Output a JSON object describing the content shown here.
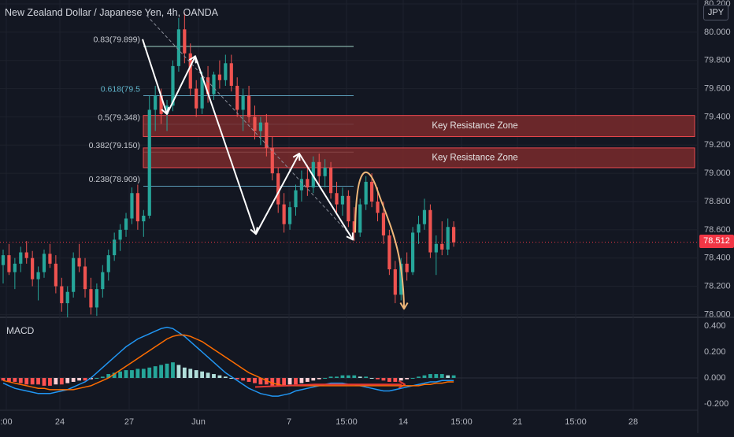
{
  "header": {
    "title": "New Zealand Dollar / Japanese Yen, 4h, OANDA",
    "currency": "JPY",
    "last_price": "78.512"
  },
  "panes": {
    "macd_label": "MACD"
  },
  "colors": {
    "background": "#131722",
    "up": "#26a69a",
    "down": "#ef5350",
    "fib": "#5b9cb8",
    "zone_fill": "#7a2a2c",
    "zone_border": "#e9484e",
    "arrow_white": "#ffffff",
    "arrow_orange": "#f0b87a",
    "macd_line": "#2196f3",
    "signal_line": "#ff6d00",
    "price_line": "#f23645"
  },
  "chart_data": [
    {
      "type": "candlestick",
      "title": "New Zealand Dollar / Japanese Yen, 4h, OANDA",
      "x_ticks": [
        ":00",
        "24",
        "27",
        "Jun",
        "7",
        "15:00",
        "14",
        "15:00",
        "21",
        "15:00",
        "28"
      ],
      "y_ticks": [
        "80.200",
        "80.000",
        "79.800",
        "79.600",
        "79.400",
        "79.200",
        "79.000",
        "78.800",
        "78.600",
        "78.400",
        "78.200",
        "78.000"
      ],
      "ylim": [
        77.98,
        80.2
      ],
      "last_price": 78.512,
      "candles": [
        {
          "o": 78.35,
          "h": 78.46,
          "l": 78.22,
          "c": 78.42
        },
        {
          "o": 78.42,
          "h": 78.5,
          "l": 78.28,
          "c": 78.3
        },
        {
          "o": 78.3,
          "h": 78.4,
          "l": 78.18,
          "c": 78.36
        },
        {
          "o": 78.36,
          "h": 78.48,
          "l": 78.3,
          "c": 78.44
        },
        {
          "o": 78.44,
          "h": 78.52,
          "l": 78.36,
          "c": 78.4
        },
        {
          "o": 78.4,
          "h": 78.45,
          "l": 78.2,
          "c": 78.25
        },
        {
          "o": 78.25,
          "h": 78.34,
          "l": 78.1,
          "c": 78.3
        },
        {
          "o": 78.3,
          "h": 78.46,
          "l": 78.26,
          "c": 78.43
        },
        {
          "o": 78.43,
          "h": 78.5,
          "l": 78.33,
          "c": 78.36
        },
        {
          "o": 78.36,
          "h": 78.42,
          "l": 78.15,
          "c": 78.2
        },
        {
          "o": 78.2,
          "h": 78.26,
          "l": 78.02,
          "c": 78.08
        },
        {
          "o": 78.08,
          "h": 78.2,
          "l": 77.98,
          "c": 78.16
        },
        {
          "o": 78.16,
          "h": 78.44,
          "l": 78.12,
          "c": 78.4
        },
        {
          "o": 78.4,
          "h": 78.5,
          "l": 78.3,
          "c": 78.34
        },
        {
          "o": 78.34,
          "h": 78.4,
          "l": 78.12,
          "c": 78.18
        },
        {
          "o": 78.18,
          "h": 78.26,
          "l": 78.0,
          "c": 78.05
        },
        {
          "o": 78.05,
          "h": 78.22,
          "l": 77.99,
          "c": 78.18
        },
        {
          "o": 78.18,
          "h": 78.35,
          "l": 78.12,
          "c": 78.3
        },
        {
          "o": 78.3,
          "h": 78.46,
          "l": 78.24,
          "c": 78.42
        },
        {
          "o": 78.42,
          "h": 78.58,
          "l": 78.38,
          "c": 78.53
        },
        {
          "o": 78.53,
          "h": 78.64,
          "l": 78.45,
          "c": 78.6
        },
        {
          "o": 78.6,
          "h": 78.72,
          "l": 78.55,
          "c": 78.68
        },
        {
          "o": 78.68,
          "h": 78.9,
          "l": 78.64,
          "c": 78.86
        },
        {
          "o": 78.86,
          "h": 78.92,
          "l": 78.6,
          "c": 78.66
        },
        {
          "o": 78.66,
          "h": 78.74,
          "l": 78.55,
          "c": 78.7
        },
        {
          "o": 78.7,
          "h": 79.55,
          "l": 78.68,
          "c": 79.45
        },
        {
          "o": 79.45,
          "h": 79.62,
          "l": 79.3,
          "c": 79.55
        },
        {
          "o": 79.55,
          "h": 79.6,
          "l": 79.35,
          "c": 79.42
        },
        {
          "o": 79.42,
          "h": 79.52,
          "l": 79.3,
          "c": 79.48
        },
        {
          "o": 79.48,
          "h": 79.8,
          "l": 79.44,
          "c": 79.76
        },
        {
          "o": 79.76,
          "h": 80.1,
          "l": 79.72,
          "c": 80.02
        },
        {
          "o": 80.02,
          "h": 80.14,
          "l": 79.78,
          "c": 79.85
        },
        {
          "o": 79.85,
          "h": 79.92,
          "l": 79.55,
          "c": 79.6
        },
        {
          "o": 79.6,
          "h": 79.66,
          "l": 79.4,
          "c": 79.46
        },
        {
          "o": 79.46,
          "h": 79.72,
          "l": 79.42,
          "c": 79.68
        },
        {
          "o": 79.68,
          "h": 79.76,
          "l": 79.5,
          "c": 79.56
        },
        {
          "o": 79.56,
          "h": 79.72,
          "l": 79.52,
          "c": 79.7
        },
        {
          "o": 79.7,
          "h": 79.8,
          "l": 79.6,
          "c": 79.66
        },
        {
          "o": 79.66,
          "h": 79.84,
          "l": 79.62,
          "c": 79.78
        },
        {
          "o": 79.78,
          "h": 79.84,
          "l": 79.58,
          "c": 79.62
        },
        {
          "o": 79.62,
          "h": 79.68,
          "l": 79.4,
          "c": 79.45
        },
        {
          "o": 79.45,
          "h": 79.6,
          "l": 79.3,
          "c": 79.55
        },
        {
          "o": 79.55,
          "h": 79.62,
          "l": 79.36,
          "c": 79.4
        },
        {
          "o": 79.4,
          "h": 79.48,
          "l": 79.24,
          "c": 79.3
        },
        {
          "o": 79.3,
          "h": 79.4,
          "l": 79.2,
          "c": 79.36
        },
        {
          "o": 79.36,
          "h": 79.42,
          "l": 79.12,
          "c": 79.18
        },
        {
          "o": 79.18,
          "h": 79.26,
          "l": 78.95,
          "c": 79.0
        },
        {
          "o": 79.0,
          "h": 79.04,
          "l": 78.72,
          "c": 78.78
        },
        {
          "o": 78.78,
          "h": 78.86,
          "l": 78.58,
          "c": 78.64
        },
        {
          "o": 78.64,
          "h": 78.8,
          "l": 78.6,
          "c": 78.76
        },
        {
          "o": 78.76,
          "h": 78.92,
          "l": 78.7,
          "c": 78.88
        },
        {
          "o": 78.88,
          "h": 79.02,
          "l": 78.8,
          "c": 78.96
        },
        {
          "o": 78.96,
          "h": 79.06,
          "l": 78.84,
          "c": 78.9
        },
        {
          "o": 78.9,
          "h": 79.12,
          "l": 78.86,
          "c": 79.08
        },
        {
          "o": 79.08,
          "h": 79.14,
          "l": 78.92,
          "c": 78.98
        },
        {
          "o": 78.98,
          "h": 79.1,
          "l": 78.9,
          "c": 79.04
        },
        {
          "o": 79.04,
          "h": 79.08,
          "l": 78.82,
          "c": 78.86
        },
        {
          "o": 78.86,
          "h": 78.94,
          "l": 78.72,
          "c": 78.78
        },
        {
          "o": 78.78,
          "h": 78.9,
          "l": 78.7,
          "c": 78.84
        },
        {
          "o": 78.84,
          "h": 78.88,
          "l": 78.62,
          "c": 78.66
        },
        {
          "o": 78.66,
          "h": 78.76,
          "l": 78.52,
          "c": 78.58
        },
        {
          "o": 78.58,
          "h": 78.82,
          "l": 78.55,
          "c": 78.78
        },
        {
          "o": 78.78,
          "h": 78.98,
          "l": 78.74,
          "c": 78.94
        },
        {
          "o": 78.94,
          "h": 79.0,
          "l": 78.76,
          "c": 78.8
        },
        {
          "o": 78.8,
          "h": 78.9,
          "l": 78.66,
          "c": 78.72
        },
        {
          "o": 78.72,
          "h": 78.8,
          "l": 78.5,
          "c": 78.56
        },
        {
          "o": 78.56,
          "h": 78.6,
          "l": 78.28,
          "c": 78.32
        },
        {
          "o": 78.32,
          "h": 78.38,
          "l": 78.08,
          "c": 78.14
        },
        {
          "o": 78.14,
          "h": 78.4,
          "l": 78.1,
          "c": 78.36
        },
        {
          "o": 78.36,
          "h": 78.44,
          "l": 78.24,
          "c": 78.3
        },
        {
          "o": 78.3,
          "h": 78.62,
          "l": 78.28,
          "c": 78.58
        },
        {
          "o": 78.58,
          "h": 78.7,
          "l": 78.5,
          "c": 78.64
        },
        {
          "o": 78.64,
          "h": 78.82,
          "l": 78.6,
          "c": 78.74
        },
        {
          "o": 78.74,
          "h": 78.78,
          "l": 78.4,
          "c": 78.44
        },
        {
          "o": 78.44,
          "h": 78.56,
          "l": 78.28,
          "c": 78.5
        },
        {
          "o": 78.5,
          "h": 78.66,
          "l": 78.42,
          "c": 78.46
        },
        {
          "o": 78.46,
          "h": 78.68,
          "l": 78.42,
          "c": 78.62
        },
        {
          "o": 78.62,
          "h": 78.66,
          "l": 78.48,
          "c": 78.51
        }
      ],
      "fibonacci": [
        {
          "label": "0.83(79.899)",
          "value": 79.899
        },
        {
          "label": "0.618(79.5",
          "value": 79.55
        },
        {
          "label": "0.5(79.348)",
          "value": 79.348
        },
        {
          "label": "0.382(79.150)",
          "value": 79.15
        },
        {
          "label": "0.238(78.909)",
          "value": 78.909
        }
      ],
      "zones": [
        {
          "label": "Key Resistance Zone",
          "from": 79.26,
          "to": 79.41
        },
        {
          "label": "Key Resistance Zone",
          "from": 79.04,
          "to": 79.18
        }
      ]
    },
    {
      "type": "macd",
      "title": "MACD",
      "y_ticks": [
        "0.400",
        "0.200",
        "0.000",
        "-0.200"
      ],
      "ylim": [
        -0.24,
        0.42
      ],
      "histogram": [
        -0.02,
        -0.03,
        -0.03,
        -0.04,
        -0.05,
        -0.05,
        -0.05,
        -0.06,
        -0.06,
        -0.05,
        -0.05,
        -0.04,
        -0.03,
        -0.02,
        -0.02,
        -0.01,
        0.0,
        0.01,
        0.03,
        0.04,
        0.05,
        0.06,
        0.06,
        0.07,
        0.07,
        0.08,
        0.09,
        0.1,
        0.11,
        0.12,
        0.1,
        0.08,
        0.07,
        0.06,
        0.05,
        0.04,
        0.03,
        0.02,
        0.01,
        0.0,
        -0.01,
        -0.02,
        -0.03,
        -0.04,
        -0.05,
        -0.05,
        -0.06,
        -0.06,
        -0.06,
        -0.05,
        -0.05,
        -0.04,
        -0.03,
        -0.02,
        -0.01,
        0.0,
        0.01,
        0.01,
        0.02,
        0.02,
        0.02,
        0.01,
        0.01,
        0.0,
        -0.01,
        -0.02,
        -0.03,
        -0.03,
        -0.02,
        -0.01,
        0.0,
        0.01,
        0.02,
        0.03,
        0.03,
        0.03,
        0.02,
        0.02
      ],
      "macd": [
        -0.04,
        -0.06,
        -0.08,
        -0.09,
        -0.1,
        -0.11,
        -0.12,
        -0.12,
        -0.12,
        -0.11,
        -0.1,
        -0.09,
        -0.07,
        -0.05,
        -0.03,
        0.0,
        0.04,
        0.08,
        0.12,
        0.16,
        0.2,
        0.24,
        0.27,
        0.3,
        0.32,
        0.34,
        0.36,
        0.38,
        0.39,
        0.38,
        0.35,
        0.32,
        0.28,
        0.24,
        0.2,
        0.16,
        0.12,
        0.08,
        0.04,
        0.01,
        -0.02,
        -0.05,
        -0.08,
        -0.1,
        -0.12,
        -0.13,
        -0.14,
        -0.14,
        -0.13,
        -0.12,
        -0.1,
        -0.09,
        -0.08,
        -0.07,
        -0.06,
        -0.05,
        -0.04,
        -0.04,
        -0.04,
        -0.05,
        -0.05,
        -0.06,
        -0.07,
        -0.08,
        -0.09,
        -0.1,
        -0.1,
        -0.09,
        -0.08,
        -0.07,
        -0.06,
        -0.05,
        -0.04,
        -0.03,
        -0.03,
        -0.02,
        -0.02,
        -0.02
      ],
      "signal": [
        -0.02,
        -0.03,
        -0.04,
        -0.05,
        -0.06,
        -0.07,
        -0.08,
        -0.08,
        -0.09,
        -0.09,
        -0.09,
        -0.09,
        -0.09,
        -0.08,
        -0.07,
        -0.06,
        -0.04,
        -0.02,
        0.0,
        0.03,
        0.06,
        0.09,
        0.12,
        0.15,
        0.18,
        0.21,
        0.24,
        0.27,
        0.3,
        0.32,
        0.33,
        0.33,
        0.32,
        0.3,
        0.28,
        0.25,
        0.22,
        0.19,
        0.16,
        0.13,
        0.1,
        0.07,
        0.04,
        0.02,
        0.0,
        -0.02,
        -0.04,
        -0.05,
        -0.06,
        -0.06,
        -0.06,
        -0.06,
        -0.06,
        -0.06,
        -0.06,
        -0.06,
        -0.06,
        -0.06,
        -0.06,
        -0.06,
        -0.06,
        -0.06,
        -0.06,
        -0.06,
        -0.06,
        -0.06,
        -0.06,
        -0.06,
        -0.06,
        -0.06,
        -0.06,
        -0.06,
        -0.05,
        -0.05,
        -0.04,
        -0.04,
        -0.03,
        -0.03
      ]
    }
  ]
}
